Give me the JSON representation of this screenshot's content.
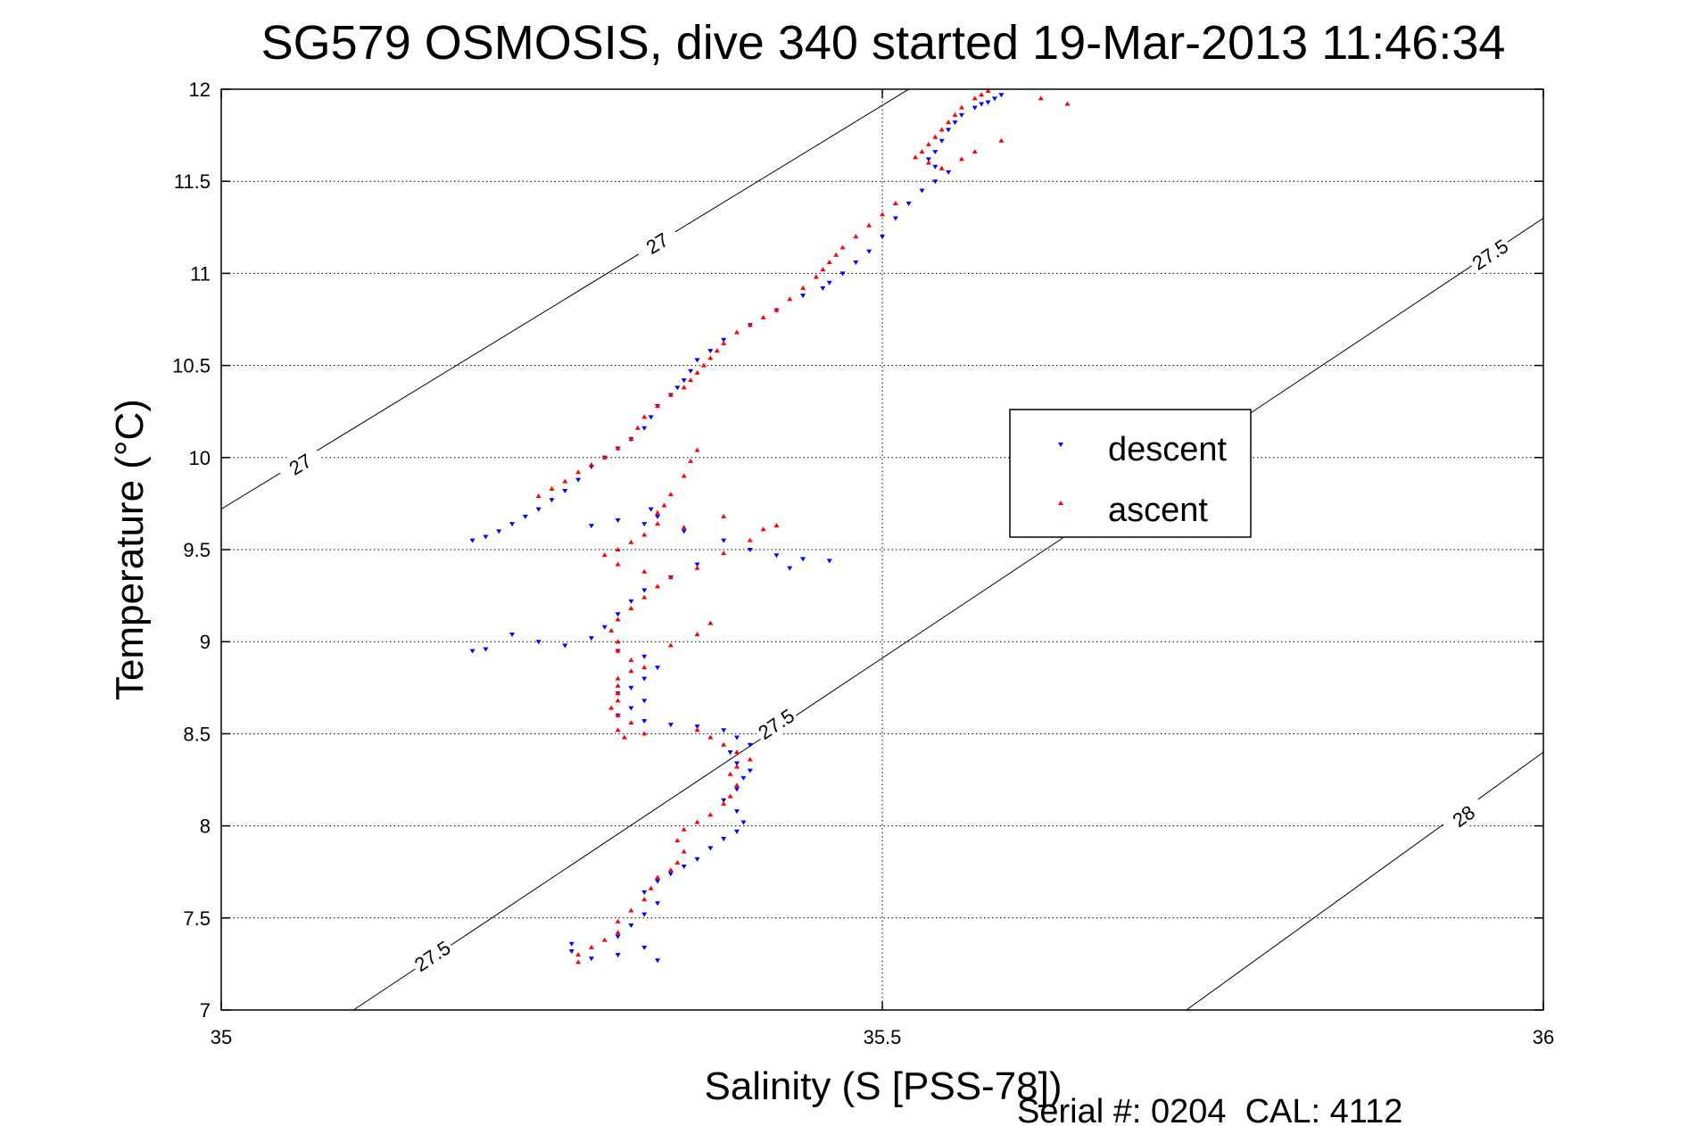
{
  "chart_data": {
    "type": "scatter",
    "title": "SG579 OSMOSIS, dive 340 started 19-Mar-2013 11:46:34",
    "xlabel": "Salinity (S [PSS-78])",
    "ylabel": "Temperature (°C)",
    "xlim": [
      35,
      36
    ],
    "ylim": [
      7,
      12
    ],
    "xticks": [
      35,
      35.5,
      36
    ],
    "xtick_labels": [
      "35",
      "35.5",
      "36"
    ],
    "yticks": [
      7,
      7.5,
      8,
      8.5,
      9,
      9.5,
      10,
      10.5,
      11,
      11.5,
      12
    ],
    "ytick_labels": [
      "7",
      "7.5",
      "8",
      "8.5",
      "9",
      "9.5",
      "10",
      "10.5",
      "11",
      "11.5",
      "12"
    ],
    "grid": true,
    "legend_position": "middle-right",
    "footer": "Serial #: 0204  CAL: 4112",
    "density_contours": [
      {
        "level": "27",
        "points": [
          [
            35.0,
            9.72
          ],
          [
            35.52,
            12.0
          ]
        ],
        "label_points": [
          [
            35.06,
            9.96
          ],
          [
            35.33,
            11.16
          ]
        ]
      },
      {
        "level": "27.5",
        "points": [
          [
            35.1,
            7.0
          ],
          [
            36.0,
            11.3
          ]
        ],
        "label_points": [
          [
            35.16,
            7.29
          ],
          [
            35.42,
            8.55
          ],
          [
            35.96,
            11.1
          ]
        ]
      },
      {
        "level": "28",
        "points": [
          [
            35.73,
            7.0
          ],
          [
            36.0,
            8.4
          ]
        ],
        "label_points": [
          [
            35.94,
            8.05
          ]
        ]
      }
    ],
    "series": [
      {
        "name": "descent",
        "color": "#0000ff",
        "marker": "triangle-down",
        "points": [
          [
            35.59,
            11.97
          ],
          [
            35.585,
            11.95
          ],
          [
            35.58,
            11.93
          ],
          [
            35.575,
            11.92
          ],
          [
            35.57,
            11.9
          ],
          [
            35.56,
            11.86
          ],
          [
            35.555,
            11.82
          ],
          [
            35.55,
            11.78
          ],
          [
            35.545,
            11.72
          ],
          [
            35.54,
            11.66
          ],
          [
            35.535,
            11.62
          ],
          [
            35.54,
            11.58
          ],
          [
            35.55,
            11.55
          ],
          [
            35.54,
            11.5
          ],
          [
            35.53,
            11.45
          ],
          [
            35.52,
            11.38
          ],
          [
            35.51,
            11.3
          ],
          [
            35.5,
            11.2
          ],
          [
            35.49,
            11.12
          ],
          [
            35.48,
            11.06
          ],
          [
            35.47,
            11.0
          ],
          [
            35.46,
            10.95
          ],
          [
            35.455,
            10.92
          ],
          [
            35.44,
            10.88
          ],
          [
            35.42,
            10.8
          ],
          [
            35.4,
            10.72
          ],
          [
            35.38,
            10.64
          ],
          [
            35.37,
            10.58
          ],
          [
            35.36,
            10.53
          ],
          [
            35.355,
            10.47
          ],
          [
            35.35,
            10.42
          ],
          [
            35.345,
            10.38
          ],
          [
            35.34,
            10.34
          ],
          [
            35.33,
            10.28
          ],
          [
            35.325,
            10.22
          ],
          [
            35.32,
            10.16
          ],
          [
            35.31,
            10.1
          ],
          [
            35.3,
            10.05
          ],
          [
            35.29,
            10.0
          ],
          [
            35.28,
            9.95
          ],
          [
            35.27,
            9.88
          ],
          [
            35.26,
            9.82
          ],
          [
            35.25,
            9.77
          ],
          [
            35.24,
            9.72
          ],
          [
            35.23,
            9.68
          ],
          [
            35.22,
            9.64
          ],
          [
            35.21,
            9.6
          ],
          [
            35.2,
            9.57
          ],
          [
            35.19,
            9.55
          ],
          [
            35.28,
            9.63
          ],
          [
            35.3,
            9.66
          ],
          [
            35.325,
            9.72
          ],
          [
            35.33,
            9.68
          ],
          [
            35.32,
            9.64
          ],
          [
            35.35,
            9.6
          ],
          [
            35.38,
            9.55
          ],
          [
            35.4,
            9.5
          ],
          [
            35.42,
            9.47
          ],
          [
            35.44,
            9.45
          ],
          [
            35.46,
            9.44
          ],
          [
            35.43,
            9.4
          ],
          [
            35.36,
            9.42
          ],
          [
            35.34,
            9.35
          ],
          [
            35.32,
            9.28
          ],
          [
            35.31,
            9.22
          ],
          [
            35.3,
            9.15
          ],
          [
            35.29,
            9.08
          ],
          [
            35.28,
            9.02
          ],
          [
            35.26,
            8.98
          ],
          [
            35.24,
            9.0
          ],
          [
            35.22,
            9.04
          ],
          [
            35.2,
            8.96
          ],
          [
            35.19,
            8.95
          ],
          [
            35.3,
            8.95
          ],
          [
            35.32,
            8.92
          ],
          [
            35.33,
            8.86
          ],
          [
            35.32,
            8.8
          ],
          [
            35.31,
            8.75
          ],
          [
            35.3,
            8.72
          ],
          [
            35.32,
            8.68
          ],
          [
            35.31,
            8.64
          ],
          [
            35.3,
            8.6
          ],
          [
            35.32,
            8.57
          ],
          [
            35.34,
            8.55
          ],
          [
            35.36,
            8.54
          ],
          [
            35.38,
            8.52
          ],
          [
            35.39,
            8.48
          ],
          [
            35.4,
            8.44
          ],
          [
            35.385,
            8.4
          ],
          [
            35.39,
            8.34
          ],
          [
            35.4,
            8.3
          ],
          [
            35.395,
            8.26
          ],
          [
            35.39,
            8.2
          ],
          [
            35.38,
            8.14
          ],
          [
            35.39,
            8.08
          ],
          [
            35.395,
            8.02
          ],
          [
            35.39,
            7.97
          ],
          [
            35.38,
            7.93
          ],
          [
            35.37,
            7.88
          ],
          [
            35.36,
            7.82
          ],
          [
            35.35,
            7.78
          ],
          [
            35.34,
            7.74
          ],
          [
            35.33,
            7.7
          ],
          [
            35.32,
            7.64
          ],
          [
            35.33,
            7.58
          ],
          [
            35.32,
            7.52
          ],
          [
            35.31,
            7.46
          ],
          [
            35.3,
            7.4
          ],
          [
            35.32,
            7.34
          ],
          [
            35.3,
            7.3
          ],
          [
            35.28,
            7.28
          ],
          [
            35.33,
            7.27
          ],
          [
            35.265,
            7.36
          ],
          [
            35.265,
            7.32
          ]
        ]
      },
      {
        "name": "ascent",
        "color": "#ff0000",
        "marker": "triangle-up",
        "points": [
          [
            35.58,
            11.99
          ],
          [
            35.575,
            11.97
          ],
          [
            35.57,
            11.95
          ],
          [
            35.56,
            11.9
          ],
          [
            35.555,
            11.86
          ],
          [
            35.55,
            11.82
          ],
          [
            35.545,
            11.78
          ],
          [
            35.54,
            11.74
          ],
          [
            35.535,
            11.7
          ],
          [
            35.53,
            11.66
          ],
          [
            35.525,
            11.63
          ],
          [
            35.535,
            11.6
          ],
          [
            35.545,
            11.57
          ],
          [
            35.56,
            11.62
          ],
          [
            35.57,
            11.66
          ],
          [
            35.62,
            11.95
          ],
          [
            35.64,
            11.92
          ],
          [
            35.59,
            11.72
          ],
          [
            35.51,
            11.38
          ],
          [
            35.5,
            11.32
          ],
          [
            35.49,
            11.26
          ],
          [
            35.48,
            11.2
          ],
          [
            35.47,
            11.14
          ],
          [
            35.465,
            11.1
          ],
          [
            35.46,
            11.06
          ],
          [
            35.455,
            11.02
          ],
          [
            35.45,
            10.98
          ],
          [
            35.44,
            10.92
          ],
          [
            35.43,
            10.86
          ],
          [
            35.42,
            10.8
          ],
          [
            35.41,
            10.76
          ],
          [
            35.4,
            10.72
          ],
          [
            35.39,
            10.68
          ],
          [
            35.38,
            10.62
          ],
          [
            35.375,
            10.58
          ],
          [
            35.37,
            10.54
          ],
          [
            35.365,
            10.5
          ],
          [
            35.36,
            10.46
          ],
          [
            35.355,
            10.42
          ],
          [
            35.35,
            10.38
          ],
          [
            35.34,
            10.34
          ],
          [
            35.33,
            10.28
          ],
          [
            35.32,
            10.22
          ],
          [
            35.315,
            10.16
          ],
          [
            35.31,
            10.1
          ],
          [
            35.3,
            10.05
          ],
          [
            35.29,
            10.0
          ],
          [
            35.28,
            9.96
          ],
          [
            35.27,
            9.92
          ],
          [
            35.26,
            9.87
          ],
          [
            35.25,
            9.83
          ],
          [
            35.24,
            9.79
          ],
          [
            35.36,
            10.04
          ],
          [
            35.355,
            9.98
          ],
          [
            35.35,
            9.9
          ],
          [
            35.34,
            9.8
          ],
          [
            35.335,
            9.74
          ],
          [
            35.33,
            9.7
          ],
          [
            35.33,
            9.64
          ],
          [
            35.32,
            9.58
          ],
          [
            35.31,
            9.54
          ],
          [
            35.3,
            9.5
          ],
          [
            35.29,
            9.47
          ],
          [
            35.3,
            9.42
          ],
          [
            35.32,
            9.38
          ],
          [
            35.34,
            9.35
          ],
          [
            35.36,
            9.4
          ],
          [
            35.38,
            9.48
          ],
          [
            35.4,
            9.55
          ],
          [
            35.41,
            9.61
          ],
          [
            35.42,
            9.63
          ],
          [
            35.38,
            9.68
          ],
          [
            35.35,
            9.62
          ],
          [
            35.33,
            9.3
          ],
          [
            35.32,
            9.24
          ],
          [
            35.31,
            9.18
          ],
          [
            35.3,
            9.12
          ],
          [
            35.295,
            9.06
          ],
          [
            35.3,
            9.0
          ],
          [
            35.3,
            8.95
          ],
          [
            35.31,
            8.9
          ],
          [
            35.32,
            8.86
          ],
          [
            35.34,
            8.98
          ],
          [
            35.36,
            9.04
          ],
          [
            35.37,
            9.1
          ],
          [
            35.31,
            8.84
          ],
          [
            35.3,
            8.8
          ],
          [
            35.3,
            8.76
          ],
          [
            35.3,
            8.72
          ],
          [
            35.3,
            8.68
          ],
          [
            35.295,
            8.64
          ],
          [
            35.3,
            8.6
          ],
          [
            35.31,
            8.56
          ],
          [
            35.3,
            8.52
          ],
          [
            35.305,
            8.48
          ],
          [
            35.32,
            8.5
          ],
          [
            35.36,
            8.52
          ],
          [
            35.37,
            8.48
          ],
          [
            35.38,
            8.44
          ],
          [
            35.39,
            8.4
          ],
          [
            35.4,
            8.36
          ],
          [
            35.39,
            8.32
          ],
          [
            35.385,
            8.28
          ],
          [
            35.39,
            8.22
          ],
          [
            35.385,
            8.16
          ],
          [
            35.38,
            8.12
          ],
          [
            35.37,
            8.06
          ],
          [
            35.36,
            8.02
          ],
          [
            35.35,
            7.98
          ],
          [
            35.345,
            7.92
          ],
          [
            35.35,
            7.86
          ],
          [
            35.345,
            7.8
          ],
          [
            35.34,
            7.76
          ],
          [
            35.33,
            7.72
          ],
          [
            35.325,
            7.66
          ],
          [
            35.32,
            7.6
          ],
          [
            35.31,
            7.54
          ],
          [
            35.3,
            7.48
          ],
          [
            35.3,
            7.42
          ],
          [
            35.29,
            7.38
          ],
          [
            35.28,
            7.34
          ],
          [
            35.27,
            7.3
          ],
          [
            35.27,
            7.26
          ]
        ]
      }
    ]
  }
}
